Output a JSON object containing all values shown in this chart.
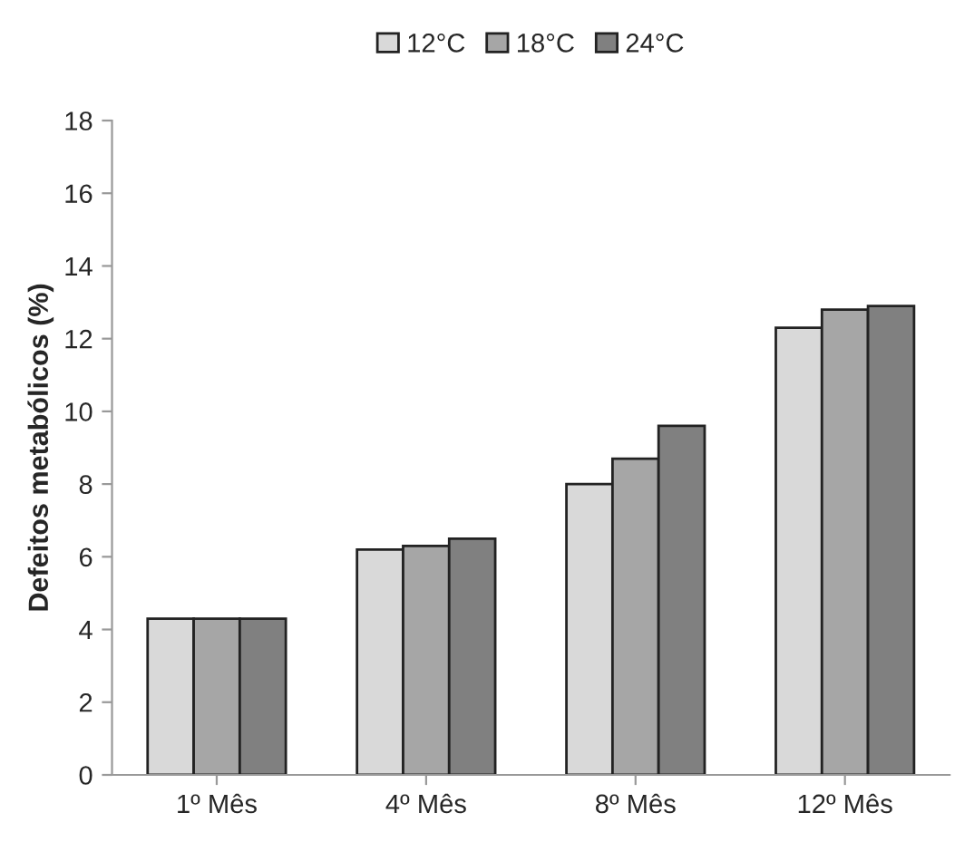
{
  "chart_data": {
    "type": "bar",
    "ylabel": "Defeitos metabólicos (%)",
    "categories": [
      "1º Mês",
      "4º Mês",
      "8º Mês",
      "12º Mês"
    ],
    "series": [
      {
        "name": "12°C",
        "color": "#d9d9d9",
        "values": [
          4.3,
          6.2,
          8.0,
          12.3
        ]
      },
      {
        "name": "18°C",
        "color": "#a6a6a6",
        "values": [
          4.3,
          6.3,
          8.7,
          12.8
        ]
      },
      {
        "name": "24°C",
        "color": "#808080",
        "values": [
          4.3,
          6.5,
          9.6,
          12.9
        ]
      }
    ],
    "ylim": [
      0,
      18
    ],
    "yticks": [
      0,
      2,
      4,
      6,
      8,
      10,
      12,
      14,
      16,
      18
    ],
    "grid": false,
    "legend": "top"
  }
}
